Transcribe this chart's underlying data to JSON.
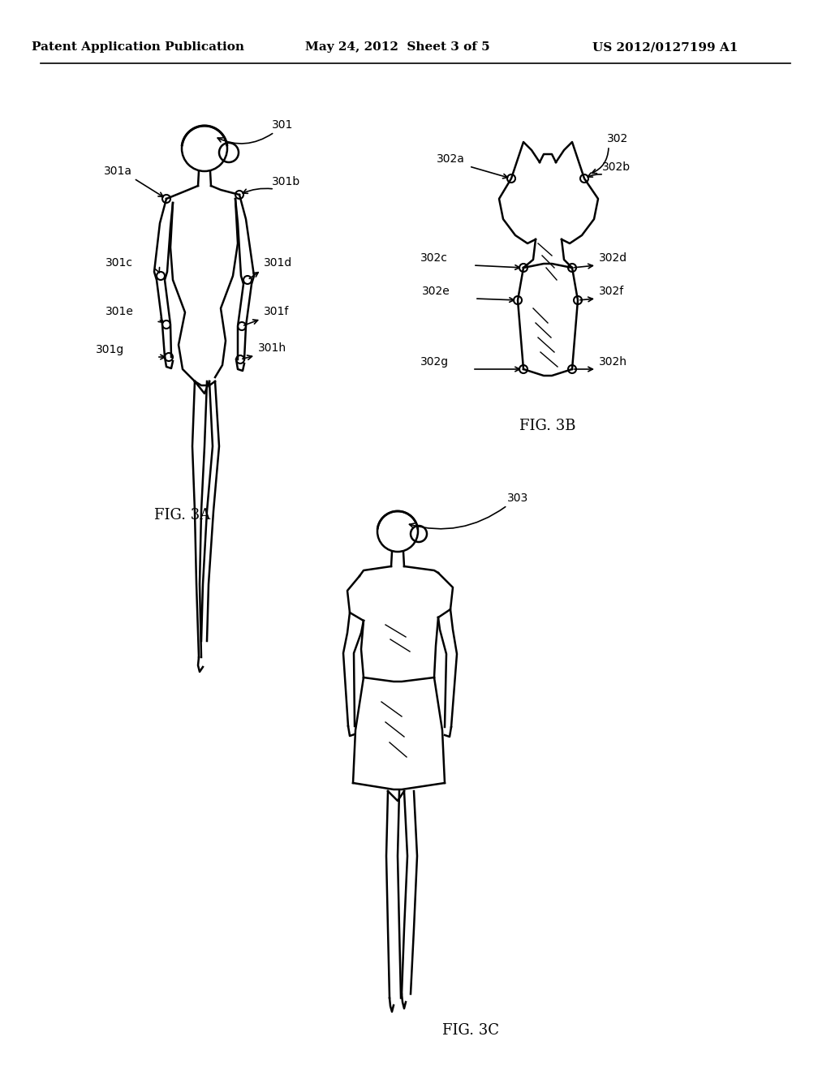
{
  "title_left": "Patent Application Publication",
  "title_center": "May 24, 2012  Sheet 3 of 5",
  "title_right": "US 2012/0127199 A1",
  "fig3a_label": "FIG. 3A",
  "fig3b_label": "FIG. 3B",
  "fig3c_label": "FIG. 3C",
  "bg_color": "#ffffff",
  "line_color": "#000000",
  "label_fontsize": 10,
  "header_fontsize": 11
}
